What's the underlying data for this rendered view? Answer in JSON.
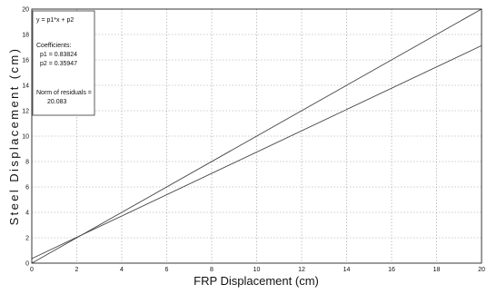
{
  "chart_data": {
    "type": "line",
    "title": "",
    "xlabel": "FRP Displacement (cm)",
    "ylabel": "Steel Displacement (cm)",
    "xlim": [
      0,
      20
    ],
    "ylim": [
      0,
      20
    ],
    "xticks": [
      0,
      2,
      4,
      6,
      8,
      10,
      12,
      14,
      16,
      18,
      20
    ],
    "yticks": [
      0,
      2,
      4,
      6,
      8,
      10,
      12,
      14,
      16,
      18,
      20
    ],
    "grid": true,
    "series": [
      {
        "x": [
          0,
          20
        ],
        "y": [
          0,
          20
        ],
        "color": "#444444"
      },
      {
        "x": [
          0,
          20
        ],
        "y": [
          0.35947,
          17.12427
        ],
        "color": "#444444"
      }
    ],
    "annotation": {
      "position": "top-left",
      "lines": [
        "y = p1*x + p2",
        "Coefficients:",
        "p1 = 0.83824",
        "p2 = 0.35947",
        "Norm of residuals =",
        "20.083"
      ]
    }
  }
}
